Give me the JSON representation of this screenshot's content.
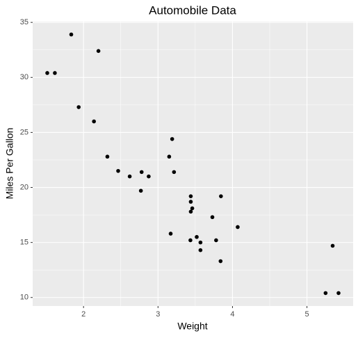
{
  "chart_data": {
    "type": "scatter",
    "title": "Automobile Data",
    "x_label": "Weight",
    "y_label": "Miles Per Gallon",
    "x": [
      2.62,
      2.875,
      2.32,
      3.215,
      3.44,
      3.46,
      3.57,
      3.19,
      3.15,
      3.44,
      3.44,
      4.07,
      3.73,
      3.78,
      5.25,
      5.424,
      5.345,
      2.2,
      1.615,
      1.835,
      2.465,
      3.52,
      3.435,
      3.84,
      3.845,
      1.935,
      2.14,
      1.513,
      3.17,
      2.77,
      3.57,
      2.78
    ],
    "values": [
      21.0,
      21.0,
      22.8,
      21.4,
      18.7,
      18.1,
      14.3,
      24.4,
      22.8,
      19.2,
      17.8,
      16.4,
      17.3,
      15.2,
      10.4,
      10.4,
      14.7,
      32.4,
      30.4,
      33.9,
      21.5,
      15.5,
      15.2,
      13.3,
      19.2,
      27.3,
      26.0,
      30.4,
      15.8,
      19.7,
      15.0,
      21.4
    ],
    "color": "#000000",
    "xlim": [
      1.317,
      5.62
    ],
    "ylim": [
      9.225,
      35.075
    ],
    "xticks": [
      2,
      3,
      4,
      5
    ],
    "yticks": [
      10,
      15,
      20,
      25,
      30,
      35
    ],
    "grid": true
  }
}
